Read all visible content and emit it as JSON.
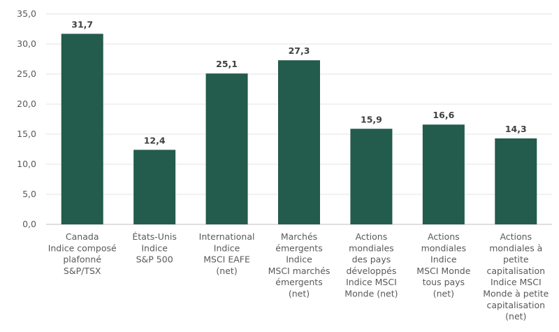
{
  "chart_data": {
    "type": "bar",
    "title": "",
    "xlabel": "",
    "ylabel": "",
    "ylim": [
      0,
      35
    ],
    "yticks": [
      "0,0",
      "5,0",
      "10,0",
      "15,0",
      "20,0",
      "25,0",
      "30,0",
      "35,0"
    ],
    "ytick_values": [
      0,
      5,
      10,
      15,
      20,
      25,
      30,
      35
    ],
    "grid": true,
    "bar_color": "#235b4c",
    "categories": [
      [
        "Canada",
        "Indice composé",
        "plafonné",
        "S&P/TSX"
      ],
      [
        "États-Unis",
        "Indice",
        "S&P 500"
      ],
      [
        "International",
        "Indice",
        "MSCI EAFE",
        "(net)"
      ],
      [
        "Marchés",
        "émergents",
        "Indice",
        "MSCI marchés",
        "émergents",
        "(net)"
      ],
      [
        "Actions",
        "mondiales",
        "des pays",
        "développés",
        "Indice MSCI",
        "Monde (net)"
      ],
      [
        "Actions",
        "mondiales",
        "Indice",
        "MSCI Monde",
        "tous pays",
        "(net)"
      ],
      [
        "Actions",
        "mondiales à",
        "petite",
        "capitalisation",
        "Indice MSCI",
        "Monde à petite",
        "capitalisation",
        "(net)"
      ]
    ],
    "values": [
      31.7,
      12.4,
      25.1,
      27.3,
      15.9,
      16.6,
      14.3
    ],
    "data_labels": [
      "31,7",
      "12,4",
      "25,1",
      "27,3",
      "15,9",
      "16,6",
      "14,3"
    ]
  }
}
